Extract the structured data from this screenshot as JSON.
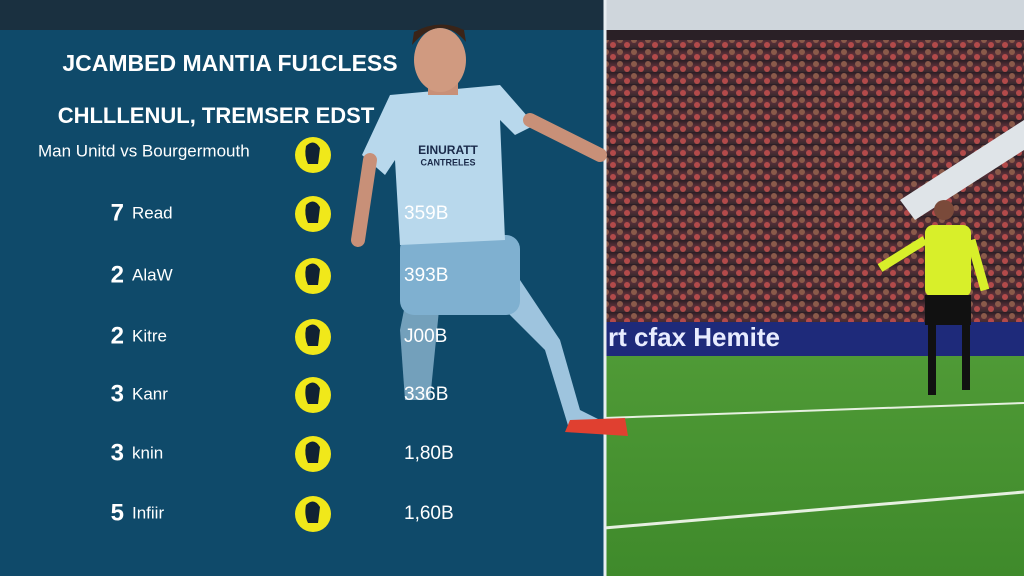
{
  "header": {
    "title": "JCAMBED MANTIA FU1CLESS",
    "subtitle": "CHLLLENUL, TREMSER EDST",
    "match": "Man Unitd vs Bourgermouth"
  },
  "rows": [
    {
      "rank": 7,
      "name": "Read",
      "value": "359B"
    },
    {
      "rank": 2,
      "name": "AlaW",
      "value": "393B"
    },
    {
      "rank": 2,
      "name": "Kitre",
      "value": "J00B"
    },
    {
      "rank": 3,
      "name": "Kanr",
      "value": "336B"
    },
    {
      "rank": 3,
      "name": "knin",
      "value": "1,80B"
    },
    {
      "rank": 5,
      "name": "Infiir",
      "value": "1,60B"
    }
  ],
  "shirt": {
    "sponsor": "EINURATT",
    "sub": "CANTRELES"
  },
  "banner": "rt cfax Hemite"
}
